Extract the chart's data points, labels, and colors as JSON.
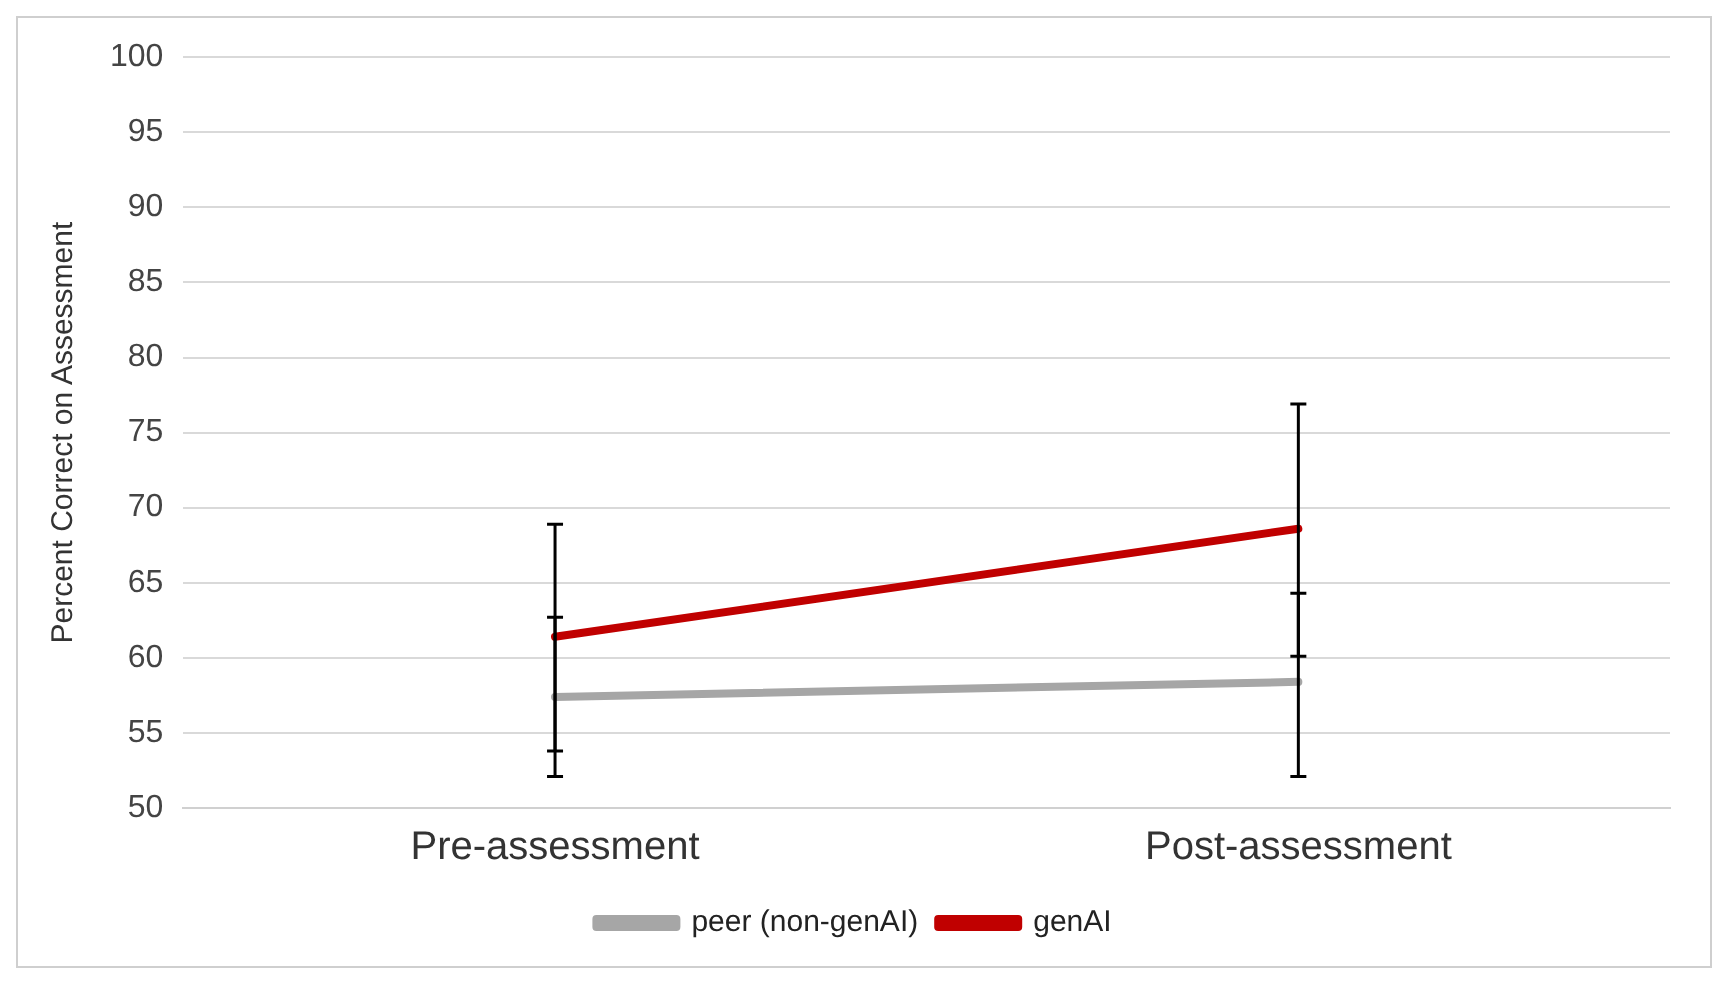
{
  "chart_data": {
    "type": "line",
    "ylabel": "Percent Correct on Assessment",
    "categories": [
      "Pre-assessment",
      "Post-assessment"
    ],
    "series": [
      {
        "name": "peer (non-genAI)",
        "color": "#a6a6a6",
        "values": [
          57.4,
          58.4
        ],
        "errors": [
          [
            52.1,
            62.7
          ],
          [
            52.1,
            64.3
          ]
        ]
      },
      {
        "name": "genAI",
        "color": "#c00000",
        "values": [
          61.4,
          68.6
        ],
        "errors": [
          [
            53.8,
            68.9
          ],
          [
            60.1,
            76.9
          ]
        ]
      }
    ],
    "ylim": [
      50,
      100
    ],
    "yticks": [
      50,
      55,
      60,
      65,
      70,
      75,
      80,
      85,
      90,
      95,
      100
    ],
    "grid": "y",
    "legend": "bottom",
    "marker": "none",
    "line_style": "solid"
  }
}
